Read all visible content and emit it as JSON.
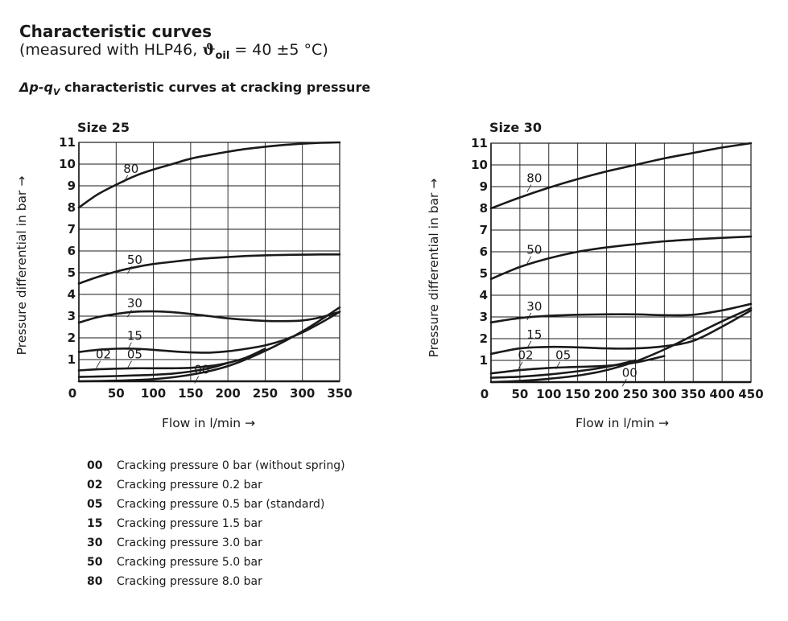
{
  "header": {
    "title": "Characteristic curves",
    "subtitle_prefix": "(measured with HLP46, ",
    "theta": "ϑ",
    "theta_sub": "oil",
    "subtitle_suffix": " = 40 ±5 °C)",
    "section_a": "Δp-q",
    "section_sub": "V",
    "section_b": " characteristic curves at cracking pressure"
  },
  "legend": [
    {
      "code": "00",
      "text": "Cracking pressure 0 bar (without spring)"
    },
    {
      "code": "02",
      "text": "Cracking pressure 0.2 bar"
    },
    {
      "code": "05",
      "text": "Cracking pressure 0.5 bar (standard)"
    },
    {
      "code": "15",
      "text": "Cracking pressure 1.5 bar"
    },
    {
      "code": "30",
      "text": "Cracking pressure 3.0 bar"
    },
    {
      "code": "50",
      "text": "Cracking pressure 5.0 bar"
    },
    {
      "code": "80",
      "text": "Cracking pressure 8.0 bar"
    }
  ],
  "chart_data": [
    {
      "type": "line",
      "title": "Size 25",
      "xlabel": "Flow in l/min →",
      "ylabel": "Pressure differential in bar →",
      "xlim": [
        0,
        350
      ],
      "ylim": [
        0,
        11
      ],
      "xticks": [
        0,
        50,
        100,
        150,
        200,
        250,
        300,
        350
      ],
      "yticks": [
        1,
        2,
        3,
        4,
        5,
        6,
        7,
        8,
        9,
        10,
        11
      ],
      "grid": true,
      "series": [
        {
          "name": "80",
          "label_at": [
            70,
            9.6
          ],
          "x": [
            0,
            25,
            50,
            75,
            100,
            125,
            150,
            175,
            200,
            225,
            250,
            275,
            300,
            325,
            350
          ],
          "y": [
            8.0,
            8.6,
            9.05,
            9.45,
            9.75,
            10.0,
            10.25,
            10.42,
            10.57,
            10.7,
            10.8,
            10.88,
            10.94,
            10.98,
            11.0
          ]
        },
        {
          "name": "50",
          "label_at": [
            75,
            5.4
          ],
          "x": [
            0,
            25,
            50,
            75,
            100,
            125,
            150,
            175,
            200,
            225,
            250,
            275,
            300,
            325,
            350
          ],
          "y": [
            4.5,
            4.8,
            5.05,
            5.25,
            5.4,
            5.5,
            5.6,
            5.67,
            5.72,
            5.77,
            5.8,
            5.82,
            5.83,
            5.84,
            5.84
          ]
        },
        {
          "name": "30",
          "label_at": [
            75,
            3.4
          ],
          "x": [
            0,
            25,
            50,
            75,
            100,
            125,
            150,
            175,
            200,
            225,
            250,
            275,
            300,
            325,
            350
          ],
          "y": [
            2.7,
            2.95,
            3.1,
            3.2,
            3.22,
            3.18,
            3.1,
            3.0,
            2.9,
            2.83,
            2.78,
            2.77,
            2.8,
            2.95,
            3.2
          ]
        },
        {
          "name": "15",
          "label_at": [
            75,
            1.9
          ],
          "x": [
            0,
            25,
            50,
            75,
            100,
            125,
            150,
            175,
            200,
            225,
            250,
            275,
            300,
            325,
            350
          ],
          "y": [
            1.35,
            1.45,
            1.5,
            1.5,
            1.45,
            1.38,
            1.33,
            1.32,
            1.38,
            1.5,
            1.65,
            1.9,
            2.25,
            2.7,
            3.2
          ]
        },
        {
          "name": "05",
          "label_at": [
            75,
            1.05
          ],
          "x": [
            0,
            25,
            50,
            75,
            100,
            125,
            150,
            175,
            200,
            225,
            250
          ],
          "y": [
            0.5,
            0.55,
            0.58,
            0.6,
            0.6,
            0.6,
            0.62,
            0.7,
            0.85,
            1.1,
            1.5
          ]
        },
        {
          "name": "02",
          "label_at": [
            33,
            1.05
          ],
          "x": [
            0,
            25,
            50,
            75,
            100,
            125,
            150,
            175,
            200
          ],
          "y": [
            0.2,
            0.22,
            0.24,
            0.27,
            0.3,
            0.35,
            0.45,
            0.6,
            0.85
          ]
        },
        {
          "name": "00",
          "label_at": [
            165,
            0.35
          ],
          "x": [
            0,
            50,
            100,
            150,
            200,
            250,
            300,
            350
          ],
          "y": [
            0.0,
            0.03,
            0.1,
            0.3,
            0.7,
            1.4,
            2.3,
            3.4
          ]
        }
      ]
    },
    {
      "type": "line",
      "title": "Size 30",
      "xlabel": "Flow in l/min →",
      "ylabel": "Pressure differential in bar →",
      "xlim": [
        0,
        450
      ],
      "ylim": [
        0,
        11
      ],
      "xticks": [
        0,
        50,
        100,
        150,
        200,
        250,
        300,
        350,
        400,
        450
      ],
      "yticks": [
        1,
        2,
        3,
        4,
        5,
        6,
        7,
        8,
        9,
        10,
        11
      ],
      "grid": true,
      "series": [
        {
          "name": "80",
          "label_at": [
            75,
            9.2
          ],
          "x": [
            0,
            50,
            100,
            150,
            200,
            250,
            300,
            350,
            400,
            450
          ],
          "y": [
            8.0,
            8.5,
            8.95,
            9.35,
            9.7,
            10.0,
            10.3,
            10.55,
            10.8,
            11.0
          ]
        },
        {
          "name": "50",
          "label_at": [
            75,
            5.9
          ],
          "x": [
            0,
            50,
            100,
            150,
            200,
            250,
            300,
            350,
            400,
            450
          ],
          "y": [
            4.75,
            5.3,
            5.7,
            6.0,
            6.2,
            6.35,
            6.48,
            6.57,
            6.64,
            6.7
          ]
        },
        {
          "name": "30",
          "label_at": [
            75,
            3.3
          ],
          "x": [
            0,
            50,
            100,
            150,
            200,
            250,
            300,
            350,
            400,
            450
          ],
          "y": [
            2.75,
            2.95,
            3.05,
            3.1,
            3.12,
            3.12,
            3.08,
            3.1,
            3.3,
            3.6
          ]
        },
        {
          "name": "15",
          "label_at": [
            75,
            2.0
          ],
          "x": [
            0,
            50,
            100,
            150,
            200,
            250,
            300,
            350,
            400,
            450
          ],
          "y": [
            1.3,
            1.55,
            1.62,
            1.6,
            1.55,
            1.55,
            1.65,
            1.9,
            2.55,
            3.3
          ]
        },
        {
          "name": "05",
          "label_at": [
            125,
            1.05
          ],
          "x": [
            0,
            50,
            100,
            150,
            200,
            250,
            300
          ],
          "y": [
            0.4,
            0.55,
            0.65,
            0.7,
            0.75,
            0.9,
            1.2
          ]
        },
        {
          "name": "02",
          "label_at": [
            60,
            1.05
          ],
          "x": [
            0,
            50,
            100,
            150,
            200,
            250
          ],
          "y": [
            0.2,
            0.25,
            0.35,
            0.5,
            0.7,
            1.0
          ]
        },
        {
          "name": "00",
          "label_at": [
            240,
            0.25
          ],
          "x": [
            0,
            50,
            100,
            150,
            200,
            250,
            300,
            350,
            400,
            450
          ],
          "y": [
            0.0,
            0.05,
            0.15,
            0.3,
            0.55,
            0.95,
            1.5,
            2.15,
            2.8,
            3.4
          ]
        }
      ]
    }
  ]
}
